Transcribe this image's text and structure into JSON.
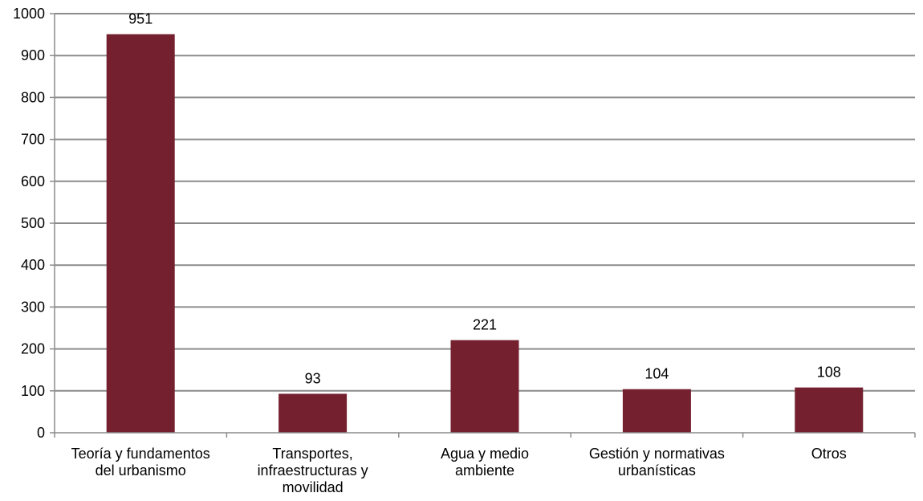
{
  "chart_data": {
    "type": "bar",
    "title": "",
    "xlabel": "",
    "ylabel": "",
    "ylim": [
      0,
      1000
    ],
    "yticks": [
      0,
      100,
      200,
      300,
      400,
      500,
      600,
      700,
      800,
      900,
      1000
    ],
    "grid": true,
    "legend": "none",
    "bar_color": "#74202f",
    "categories": [
      [
        "Teoría y fundamentos",
        "del urbanismo"
      ],
      [
        "Transportes,",
        "infraestructuras y",
        "movilidad"
      ],
      [
        "Agua y medio",
        "ambiente"
      ],
      [
        "Gestión y normativas",
        "urbanísticas"
      ],
      [
        "Otros"
      ]
    ],
    "values": [
      951,
      93,
      221,
      104,
      108
    ]
  }
}
